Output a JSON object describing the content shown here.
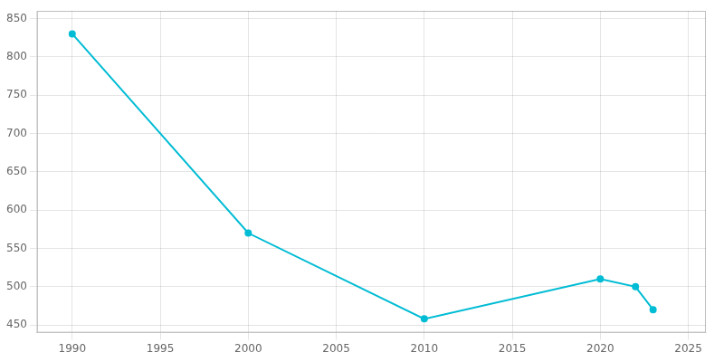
{
  "chart_data": {
    "type": "line",
    "x": [
      1990,
      2000,
      2010,
      2020,
      2022,
      2023
    ],
    "values": [
      830,
      570,
      458,
      510,
      500,
      470
    ],
    "color": "#00bcd4",
    "marker": "circle",
    "xlim": [
      1988,
      2026
    ],
    "ylim": [
      440,
      860
    ],
    "xticks": [
      1990,
      1995,
      2000,
      2005,
      2010,
      2015,
      2020,
      2025
    ],
    "yticks": [
      450,
      500,
      550,
      600,
      650,
      700,
      750,
      800,
      850
    ],
    "grid": true
  }
}
